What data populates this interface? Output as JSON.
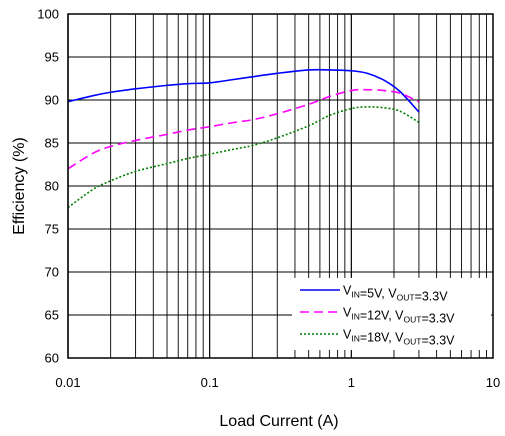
{
  "chart_data": {
    "type": "line",
    "title": "",
    "xlabel": "Load Current (A)",
    "ylabel": "Efficiency (%)",
    "x_scale": "log",
    "xlim": [
      0.01,
      10
    ],
    "ylim": [
      60,
      100
    ],
    "x_ticks": [
      "0.01",
      "0.1",
      "1",
      "10"
    ],
    "y_ticks": [
      "60",
      "65",
      "70",
      "75",
      "80",
      "85",
      "90",
      "95",
      "100"
    ],
    "grid": true,
    "legend_position": "bottom-right",
    "series": [
      {
        "name": "VIN=5V, VOUT=3.3V",
        "legend": {
          "v1": "V",
          "s1": "IN",
          "mid": "=5V, V",
          "s2": "OUT",
          "end": "=3.3V"
        },
        "color": "#0000ff",
        "style": "solid",
        "x": [
          0.01,
          0.015,
          0.02,
          0.03,
          0.05,
          0.07,
          0.1,
          0.15,
          0.2,
          0.3,
          0.5,
          0.7,
          1.0,
          1.3,
          1.7,
          2.2,
          3.0
        ],
        "y": [
          89.8,
          90.5,
          90.9,
          91.3,
          91.7,
          91.9,
          92.0,
          92.4,
          92.7,
          93.1,
          93.5,
          93.5,
          93.4,
          93.1,
          92.3,
          91.0,
          88.6
        ]
      },
      {
        "name": "VIN=12V, VOUT=3.3V",
        "legend": {
          "v1": "V",
          "s1": "IN",
          "mid": "=12V, V",
          "s2": "OUT",
          "end": "=3.3V"
        },
        "color": "#ff00ff",
        "style": "dashed",
        "x": [
          0.01,
          0.015,
          0.02,
          0.03,
          0.05,
          0.07,
          0.1,
          0.15,
          0.2,
          0.3,
          0.5,
          0.7,
          1.0,
          1.3,
          1.7,
          2.2,
          3.0
        ],
        "y": [
          82.0,
          83.8,
          84.6,
          85.3,
          86.0,
          86.5,
          86.9,
          87.4,
          87.7,
          88.4,
          89.5,
          90.4,
          91.1,
          91.2,
          91.1,
          90.8,
          89.8
        ]
      },
      {
        "name": "VIN=18V, VOUT=3.3V",
        "legend": {
          "v1": "V",
          "s1": "IN",
          "mid": "=18V, V",
          "s2": "OUT",
          "end": "=3.3V"
        },
        "color": "#008000",
        "style": "dotted",
        "x": [
          0.01,
          0.015,
          0.02,
          0.03,
          0.05,
          0.07,
          0.1,
          0.15,
          0.2,
          0.3,
          0.5,
          0.7,
          1.0,
          1.3,
          1.7,
          2.2,
          3.0
        ],
        "y": [
          77.5,
          79.6,
          80.6,
          81.7,
          82.6,
          83.2,
          83.7,
          84.3,
          84.7,
          85.6,
          87.0,
          88.2,
          89.0,
          89.2,
          89.1,
          88.7,
          87.4
        ]
      }
    ]
  }
}
